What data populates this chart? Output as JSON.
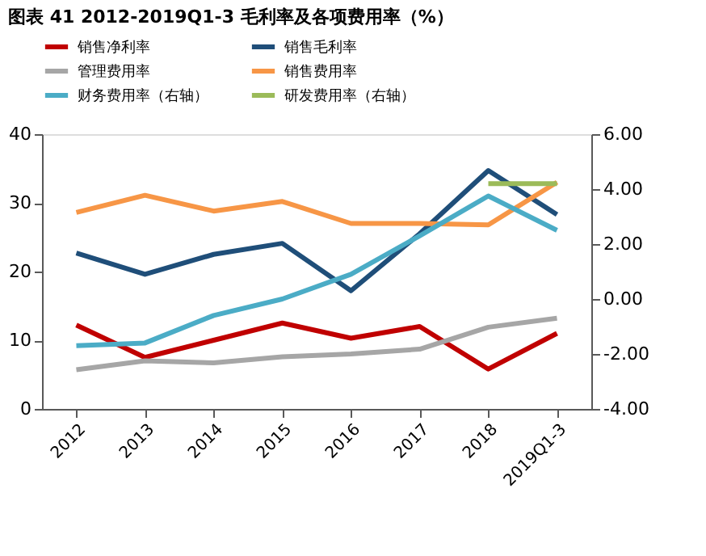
{
  "chart_data": {
    "type": "line",
    "title": "图表 41   2012-2019Q1-3 毛利率及各项费用率（%）",
    "categories": [
      "2012",
      "2013",
      "2014",
      "2015",
      "2016",
      "2017",
      "2018",
      "2019Q1-3"
    ],
    "series": [
      {
        "name": "销售净利率",
        "color": "#c00000",
        "values": [
          12.2,
          7.5,
          10,
          12.5,
          10.3,
          12,
          5.8,
          11
        ]
      },
      {
        "name": "销售毛利率",
        "color": "#1f4e79",
        "values": [
          22.7,
          19.6,
          22.5,
          24.1,
          17.2,
          25.5,
          34.7,
          28.3
        ]
      },
      {
        "name": "管理费用率",
        "color": "#a6a6a6",
        "values": [
          5.7,
          7,
          6.7,
          7.6,
          8,
          8.7,
          11.9,
          13.2
        ]
      },
      {
        "name": "销售费用率",
        "color": "#f79646",
        "values": [
          28.6,
          31.1,
          28.8,
          30.2,
          27,
          27,
          26.8,
          33
        ]
      },
      {
        "name": "财务费用率（右轴）",
        "color": "#4bacc6",
        "axis": "y2",
        "values": [
          -1.7,
          -1.6,
          -0.6,
          0.0,
          0.9,
          2.3,
          3.75,
          2.5
        ]
      },
      {
        "name": "研发费用率（右轴）",
        "color": "#9bbb59",
        "axis": "y2",
        "values": [
          null,
          null,
          null,
          null,
          null,
          null,
          4.2,
          4.2
        ]
      }
    ],
    "ylim": [
      0,
      40
    ],
    "yticks": [
      0,
      10,
      20,
      30,
      40
    ],
    "y2lim": [
      -4,
      6
    ],
    "y2ticks": [
      {
        "value": -4,
        "label": "-4.00"
      },
      {
        "value": -2,
        "label": "-2.00"
      },
      {
        "value": 0,
        "label": "0.00"
      },
      {
        "value": 2,
        "label": "2.00"
      },
      {
        "value": 4,
        "label": "4.00"
      },
      {
        "value": 6,
        "label": "6.00"
      }
    ],
    "grid": false,
    "legend": "top",
    "marker": "none",
    "line_style": "solid"
  }
}
